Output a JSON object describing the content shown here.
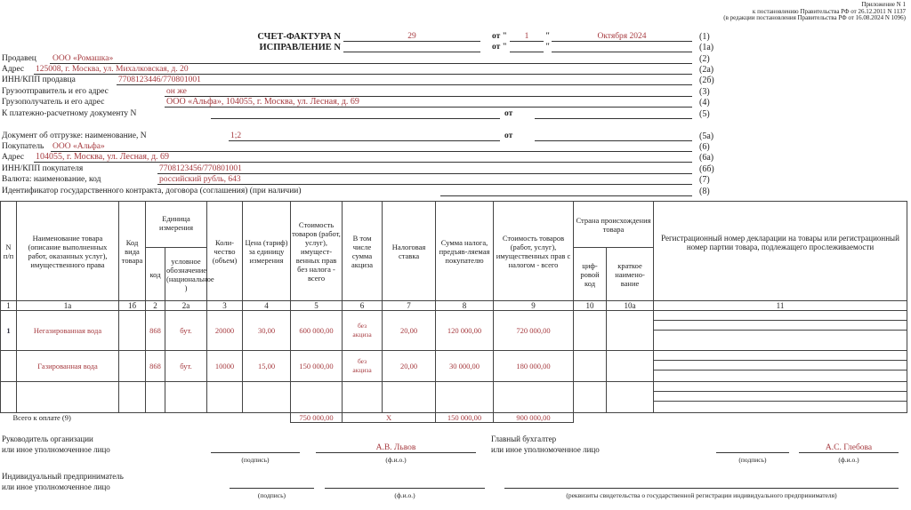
{
  "appendix": [
    "Приложение N 1",
    "к постановлению Правительства РФ от 26.12.2011 N 1137",
    "(в редакции постановления Правительства РФ от 16.08.2024 N 1096)"
  ],
  "title": {
    "invoice_label": "СЧЕТ-ФАКТУРА N",
    "invoice_no": "29",
    "from": "от \"",
    "quote": "\"",
    "day": "1",
    "month_year": "Октября 2024",
    "code": "(1)",
    "correction_label": "ИСПРАВЛЕНИЕ N",
    "correction_code": "(1а)"
  },
  "fields": {
    "seller": {
      "label": "Продавец",
      "value": "ООО «Ромашка»",
      "code": "(2)"
    },
    "seller_address": {
      "label": "Адрес",
      "value": "125008, г. Москва, ул. Михалковская, д. 20",
      "code": "(2а)"
    },
    "seller_inn": {
      "label": "ИНН/КПП продавца",
      "value": "7708123446/770801001",
      "code": "(2б)"
    },
    "shipper": {
      "label": "Грузоотправитель и его адрес",
      "value": "он же",
      "code": "(3)"
    },
    "consignee": {
      "label": "Грузополучатель и его адрес",
      "value": "ООО «Альфа», 104055, г. Москва, ул. Лесная, д. 69",
      "code": "(4)"
    },
    "payment_doc": {
      "label": "К платежно-расчетному документу N",
      "from": "от",
      "code": "(5)"
    },
    "shipping_doc": {
      "label": "Документ об отгрузке: наименование, N",
      "value": "1;2",
      "from": "от",
      "code": "(5а)"
    },
    "buyer": {
      "label": "Покупатель",
      "value": "ООО «Альфа»",
      "code": "(6)"
    },
    "buyer_address": {
      "label": "Адрес",
      "value": "104055, г. Москва, ул. Лесная, д. 69",
      "code": "(6а)"
    },
    "buyer_inn": {
      "label": "ИНН/КПП покупателя",
      "value": "7708123456/770801001",
      "code": "(6б)"
    },
    "currency": {
      "label": "Валюта: наименование, код",
      "value": "российский рубль, 643",
      "code": "(7)"
    },
    "contract_id": {
      "label": "Идентификатор государственного контракта, договора (соглашения) (при наличии)",
      "code": "(8)"
    }
  },
  "table": {
    "headers": {
      "n": "N п/п",
      "name": "Наименование товара (описание выполненных работ, оказанных услуг), имущественного права",
      "kind": "Код вида товара",
      "unit": "Единица измерения",
      "unit_code": "код",
      "unit_name": "условное обозначение (национальное )",
      "qty": "Коли-чество (объем)",
      "price": "Цена (тариф) за единицу измерения",
      "cost": "Стоимость товаров (работ, услуг), имущест-венных прав без налога - всего",
      "excise": "В том числе сумма акциза",
      "rate": "Налоговая ставка",
      "tax": "Сумма налога, предъяв-ляемая покупателю",
      "total": "Стоимость товаров (работ, услуг), имущественных прав с налогом - всего",
      "country": "Страна происхождения товара",
      "country_code": "циф-ровой код",
      "country_name": "краткое наимено-вание",
      "reg": "Регистрационный номер декларации на товары или регистрационный номер партии товара, подлежащего прослеживаемости"
    },
    "col_numbers": [
      "1",
      "1а",
      "1б",
      "2",
      "2а",
      "3",
      "4",
      "5",
      "6",
      "7",
      "8",
      "9",
      "10",
      "10а",
      "11"
    ],
    "rows": [
      {
        "n": "1",
        "name": "Негазированная вода",
        "kind": "",
        "unit_code": "868",
        "unit_name": "бут.",
        "qty": "20000",
        "price": "30,00",
        "cost": "600 000,00",
        "excise": "без акциза",
        "rate": "20,00",
        "tax": "120 000,00",
        "total": "720 000,00"
      },
      {
        "n": "",
        "name": "Газированная вода",
        "kind": "",
        "unit_code": "868",
        "unit_name": "бут.",
        "qty": "10000",
        "price": "15,00",
        "cost": "150 000,00",
        "excise": "без акциза",
        "rate": "20,00",
        "tax": "30 000,00",
        "total": "180 000,00"
      }
    ],
    "total": {
      "label": "Всего к оплате (9)",
      "cost": "750 000,00",
      "excise": "X",
      "tax": "150 000,00",
      "total": "900 000,00"
    }
  },
  "signatures": {
    "head_label1": "Руководитель организации",
    "head_label2": "или иное уполномоченное лицо",
    "head_name": "А.В. Львов",
    "acc_label1": "Главный бухгалтер",
    "acc_label2": "или иное уполномоченное лицо",
    "acc_name": "А.С. Глебова",
    "ip_label1": "Индивидуальный предприниматель",
    "ip_label2": "или иное уполномоченное лицо",
    "sign": "(подпись)",
    "fio": "(ф.и.о.)",
    "ip_req": "(реквизиты свидетельства о государственной регистрации индивидуального предпринимателя)"
  }
}
